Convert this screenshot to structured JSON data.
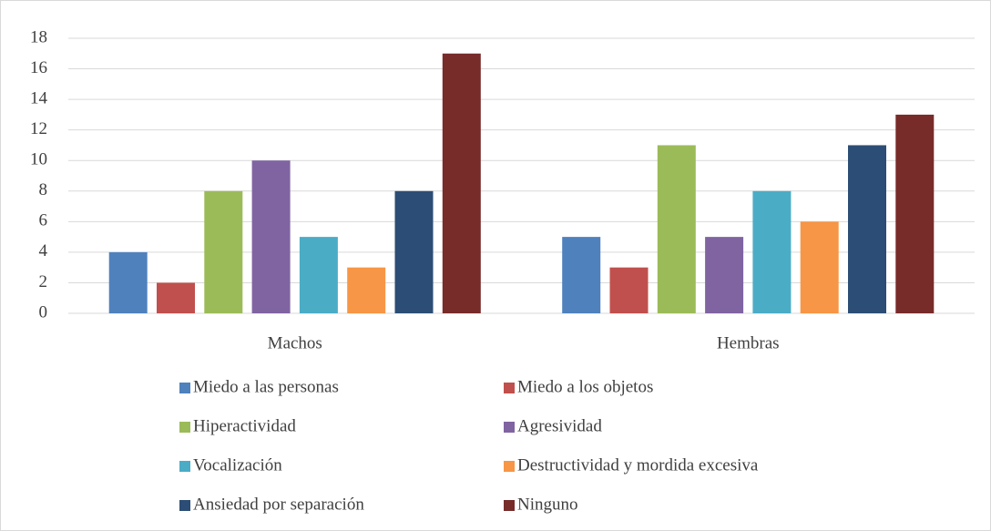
{
  "chart_data": {
    "type": "bar",
    "categories": [
      "Machos",
      "Hembras"
    ],
    "series": [
      {
        "name": "Miedo a las personas",
        "color": "#4f81bd",
        "values": [
          4,
          5
        ]
      },
      {
        "name": "Miedo a los objetos",
        "color": "#c0504d",
        "values": [
          2,
          3
        ]
      },
      {
        "name": "Hiperactividad",
        "color": "#9bbb59",
        "values": [
          8,
          11
        ]
      },
      {
        "name": "Agresividad",
        "color": "#8064a2",
        "values": [
          10,
          5
        ]
      },
      {
        "name": "Vocalización",
        "color": "#4bacc6",
        "values": [
          5,
          8
        ]
      },
      {
        "name": "Destructividad y mordida excesiva",
        "color": "#f79646",
        "values": [
          3,
          6
        ]
      },
      {
        "name": "Ansiedad por separación",
        "color": "#2c4d75",
        "values": [
          8,
          11
        ]
      },
      {
        "name": "Ninguno",
        "color": "#772c2a",
        "values": [
          17,
          13
        ]
      }
    ],
    "ylim": [
      0,
      18
    ],
    "yticks": [
      0,
      2,
      4,
      6,
      8,
      10,
      12,
      14,
      16,
      18
    ],
    "grid": true,
    "legend": "bottom"
  }
}
